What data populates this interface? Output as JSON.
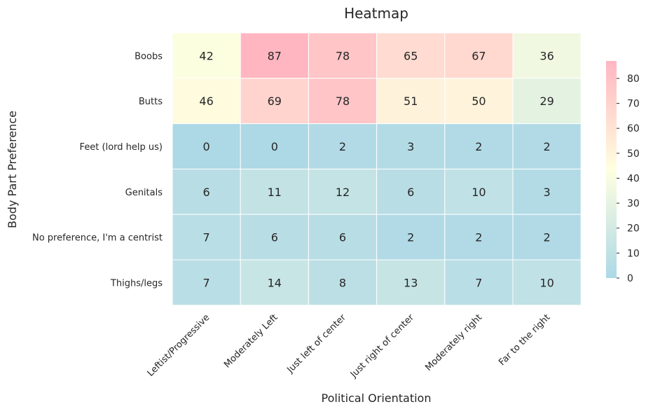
{
  "chart_data": {
    "type": "heatmap",
    "title": "Heatmap",
    "xlabel": "Political Orientation",
    "ylabel": "Body Part Preference",
    "x_categories": [
      "Leftist/Progressive",
      "Moderately Left",
      "Just left of center",
      "Just right of center",
      "Moderately right",
      "Far to the right"
    ],
    "y_categories": [
      "Boobs",
      "Butts",
      "Feet (lord help us)",
      "Genitals",
      "No preference, I'm a centrist",
      "Thighs/legs"
    ],
    "values": [
      [
        42,
        87,
        78,
        65,
        67,
        36
      ],
      [
        46,
        69,
        78,
        51,
        50,
        29
      ],
      [
        0,
        0,
        2,
        3,
        2,
        2
      ],
      [
        6,
        11,
        12,
        6,
        10,
        3
      ],
      [
        7,
        6,
        6,
        2,
        2,
        2
      ],
      [
        7,
        14,
        8,
        13,
        7,
        10
      ]
    ],
    "colorbar": {
      "min": 0,
      "max": 87,
      "ticks": [
        0,
        10,
        20,
        30,
        40,
        50,
        60,
        70,
        80
      ],
      "colors": [
        "#add8e6",
        "#ffffe0",
        "#ffb6c1"
      ]
    }
  }
}
